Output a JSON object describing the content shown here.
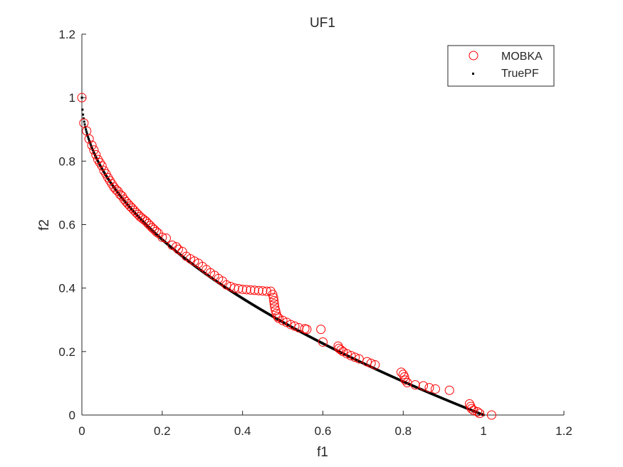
{
  "chart_data": {
    "type": "scatter",
    "title": "UF1",
    "xlabel": "f1",
    "ylabel": "f2",
    "xlim": [
      0,
      1.2
    ],
    "ylim": [
      0,
      1.2
    ],
    "xticks": [
      "0",
      "0.2",
      "0.4",
      "0.6",
      "0.8",
      "1",
      "1.2"
    ],
    "yticks": [
      "0",
      "0.2",
      "0.4",
      "0.6",
      "0.8",
      "1",
      "1.2"
    ],
    "grid": false,
    "legend_position": "top-right",
    "colors": {
      "mobka": "#ff0000",
      "truepf": "#000000"
    },
    "series": [
      {
        "name": "MOBKA",
        "marker": "circle-open",
        "points": [
          [
            0.0,
            1.0
          ],
          [
            0.005,
            0.92
          ],
          [
            0.012,
            0.895
          ],
          [
            0.018,
            0.87
          ],
          [
            0.025,
            0.85
          ],
          [
            0.03,
            0.835
          ],
          [
            0.035,
            0.82
          ],
          [
            0.04,
            0.805
          ],
          [
            0.045,
            0.795
          ],
          [
            0.05,
            0.785
          ],
          [
            0.055,
            0.77
          ],
          [
            0.06,
            0.76
          ],
          [
            0.065,
            0.748
          ],
          [
            0.07,
            0.738
          ],
          [
            0.075,
            0.728
          ],
          [
            0.08,
            0.718
          ],
          [
            0.085,
            0.71
          ],
          [
            0.09,
            0.705
          ],
          [
            0.095,
            0.695
          ],
          [
            0.1,
            0.69
          ],
          [
            0.105,
            0.68
          ],
          [
            0.11,
            0.672
          ],
          [
            0.115,
            0.665
          ],
          [
            0.12,
            0.658
          ],
          [
            0.125,
            0.652
          ],
          [
            0.13,
            0.645
          ],
          [
            0.135,
            0.638
          ],
          [
            0.14,
            0.632
          ],
          [
            0.145,
            0.625
          ],
          [
            0.15,
            0.62
          ],
          [
            0.155,
            0.615
          ],
          [
            0.16,
            0.61
          ],
          [
            0.165,
            0.603
          ],
          [
            0.17,
            0.597
          ],
          [
            0.175,
            0.59
          ],
          [
            0.18,
            0.585
          ],
          [
            0.185,
            0.578
          ],
          [
            0.19,
            0.573
          ],
          [
            0.2,
            0.56
          ],
          [
            0.21,
            0.557
          ],
          [
            0.225,
            0.535
          ],
          [
            0.235,
            0.53
          ],
          [
            0.24,
            0.522
          ],
          [
            0.25,
            0.515
          ],
          [
            0.26,
            0.5
          ],
          [
            0.27,
            0.492
          ],
          [
            0.28,
            0.485
          ],
          [
            0.29,
            0.478
          ],
          [
            0.3,
            0.468
          ],
          [
            0.31,
            0.458
          ],
          [
            0.32,
            0.448
          ],
          [
            0.33,
            0.44
          ],
          [
            0.34,
            0.43
          ],
          [
            0.35,
            0.422
          ],
          [
            0.36,
            0.41
          ],
          [
            0.37,
            0.405
          ],
          [
            0.38,
            0.4
          ],
          [
            0.39,
            0.398
          ],
          [
            0.4,
            0.396
          ],
          [
            0.41,
            0.395
          ],
          [
            0.42,
            0.394
          ],
          [
            0.43,
            0.393
          ],
          [
            0.44,
            0.392
          ],
          [
            0.45,
            0.391
          ],
          [
            0.46,
            0.39
          ],
          [
            0.47,
            0.39
          ],
          [
            0.475,
            0.38
          ],
          [
            0.477,
            0.37
          ],
          [
            0.478,
            0.36
          ],
          [
            0.479,
            0.35
          ],
          [
            0.48,
            0.34
          ],
          [
            0.482,
            0.33
          ],
          [
            0.484,
            0.32
          ],
          [
            0.487,
            0.31
          ],
          [
            0.49,
            0.305
          ],
          [
            0.5,
            0.298
          ],
          [
            0.51,
            0.292
          ],
          [
            0.52,
            0.285
          ],
          [
            0.53,
            0.28
          ],
          [
            0.54,
            0.275
          ],
          [
            0.555,
            0.272
          ],
          [
            0.56,
            0.27
          ],
          [
            0.595,
            0.27
          ],
          [
            0.6,
            0.23
          ],
          [
            0.638,
            0.217
          ],
          [
            0.64,
            0.21
          ],
          [
            0.645,
            0.205
          ],
          [
            0.65,
            0.2
          ],
          [
            0.66,
            0.193
          ],
          [
            0.67,
            0.187
          ],
          [
            0.68,
            0.182
          ],
          [
            0.69,
            0.177
          ],
          [
            0.71,
            0.168
          ],
          [
            0.72,
            0.163
          ],
          [
            0.73,
            0.158
          ],
          [
            0.795,
            0.135
          ],
          [
            0.8,
            0.128
          ],
          [
            0.803,
            0.12
          ],
          [
            0.805,
            0.11
          ],
          [
            0.81,
            0.102
          ],
          [
            0.83,
            0.095
          ],
          [
            0.85,
            0.092
          ],
          [
            0.865,
            0.086
          ],
          [
            0.88,
            0.082
          ],
          [
            0.915,
            0.078
          ],
          [
            0.965,
            0.035
          ],
          [
            0.968,
            0.027
          ],
          [
            0.97,
            0.02
          ],
          [
            0.975,
            0.015
          ],
          [
            0.985,
            0.01
          ],
          [
            0.99,
            0.005
          ],
          [
            1.02,
            0.0
          ]
        ]
      },
      {
        "name": "TruePF",
        "marker": "dot",
        "relation": "f2 = 1 - sqrt(f1)",
        "f1_range": [
          0,
          1
        ]
      }
    ]
  }
}
